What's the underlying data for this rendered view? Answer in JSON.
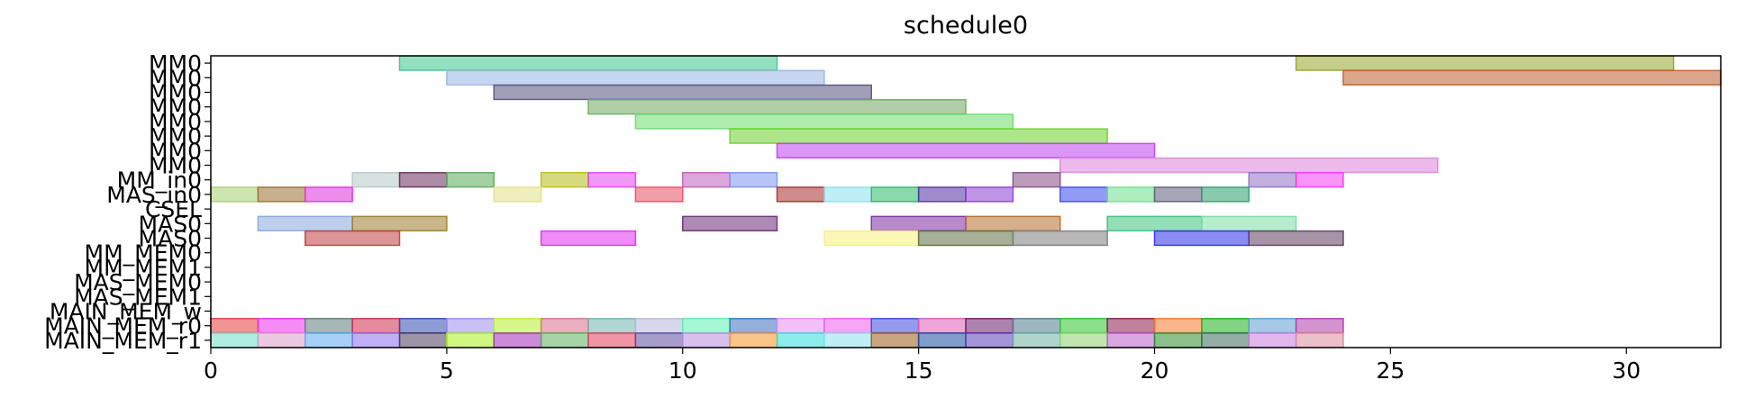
{
  "chart_data": {
    "type": "gantt",
    "title": "schedule0",
    "xlim": [
      0,
      32
    ],
    "x_ticks": [
      0,
      5,
      10,
      15,
      20,
      25,
      30
    ],
    "rows": [
      "MM0",
      "MM0",
      "MM0",
      "MM0",
      "MM0",
      "MM0",
      "MM0",
      "MM0",
      "MM_in0",
      "MAS_in0",
      "CSEL",
      "MAS0",
      "MAS0",
      "MM_MEM0",
      "MM_MEM1",
      "MAS_MEM0",
      "MAS_MEM1",
      "MAIN_MEM_w",
      "MAIN_MEM_r0",
      "MAIN_MEM_r1"
    ],
    "bars": [
      {
        "row": 0,
        "start": 4,
        "end": 12,
        "color": "#3cc48c"
      },
      {
        "row": 0,
        "start": 23,
        "end": 31,
        "color": "#94a428"
      },
      {
        "row": 1,
        "start": 5,
        "end": 13,
        "color": "#98b4e4"
      },
      {
        "row": 1,
        "start": 24,
        "end": 32,
        "color": "#c05c2c"
      },
      {
        "row": 2,
        "start": 6,
        "end": 14,
        "color": "#54507c"
      },
      {
        "row": 3,
        "start": 8,
        "end": 16,
        "color": "#70a860"
      },
      {
        "row": 4,
        "start": 9,
        "end": 17,
        "color": "#6cdc6c"
      },
      {
        "row": 5,
        "start": 11,
        "end": 19,
        "color": "#6cd02c"
      },
      {
        "row": 6,
        "start": 12,
        "end": 20,
        "color": "#c040f0"
      },
      {
        "row": 7,
        "start": 18,
        "end": 26,
        "color": "#dc84dc"
      },
      {
        "row": 8,
        "start": 3,
        "end": 4,
        "color": "#b8c8c8"
      },
      {
        "row": 8,
        "start": 4,
        "end": 5,
        "color": "#6c2c5c"
      },
      {
        "row": 8,
        "start": 5,
        "end": 6,
        "color": "#58ac58"
      },
      {
        "row": 8,
        "start": 7,
        "end": 8,
        "color": "#b8bc18"
      },
      {
        "row": 8,
        "start": 8,
        "end": 9,
        "color": "#e444f0"
      },
      {
        "row": 8,
        "start": 10,
        "end": 11,
        "color": "#c05cbc"
      },
      {
        "row": 8,
        "start": 11,
        "end": 12,
        "color": "#7c94f0"
      },
      {
        "row": 8,
        "start": 17,
        "end": 18,
        "color": "#844c84"
      },
      {
        "row": 8,
        "start": 22,
        "end": 23,
        "color": "#9070c8"
      },
      {
        "row": 8,
        "start": 23,
        "end": 24,
        "color": "#f43cf4"
      },
      {
        "row": 9,
        "start": 0,
        "end": 1,
        "color": "#a8d070"
      },
      {
        "row": 9,
        "start": 1,
        "end": 2,
        "color": "#987030"
      },
      {
        "row": 9,
        "start": 2,
        "end": 3,
        "color": "#dc30dc"
      },
      {
        "row": 9,
        "start": 6,
        "end": 7,
        "color": "#e0e088"
      },
      {
        "row": 9,
        "start": 9,
        "end": 10,
        "color": "#e84c64"
      },
      {
        "row": 9,
        "start": 12,
        "end": 13,
        "color": "#a42c2c"
      },
      {
        "row": 9,
        "start": 13,
        "end": 14,
        "color": "#8ce0ec"
      },
      {
        "row": 9,
        "start": 14,
        "end": 15,
        "color": "#2cb868"
      },
      {
        "row": 9,
        "start": 15,
        "end": 16,
        "color": "#5030a0"
      },
      {
        "row": 9,
        "start": 16,
        "end": 17,
        "color": "#8c3cd0"
      },
      {
        "row": 9,
        "start": 18,
        "end": 19,
        "color": "#3c48ec"
      },
      {
        "row": 9,
        "start": 19,
        "end": 20,
        "color": "#6ce08c"
      },
      {
        "row": 9,
        "start": 20,
        "end": 21,
        "color": "#5c5c7c"
      },
      {
        "row": 9,
        "start": 21,
        "end": 22,
        "color": "#2c9c6c"
      },
      {
        "row": 11,
        "start": 1,
        "end": 3,
        "color": "#88a8dc"
      },
      {
        "row": 11,
        "start": 3,
        "end": 5,
        "color": "#9c7c2c"
      },
      {
        "row": 11,
        "start": 10,
        "end": 12,
        "color": "#6c2c78"
      },
      {
        "row": 11,
        "start": 14,
        "end": 16,
        "color": "#7c2ca0"
      },
      {
        "row": 11,
        "start": 16,
        "end": 18,
        "color": "#b46c2c"
      },
      {
        "row": 11,
        "start": 19,
        "end": 21,
        "color": "#3cc47c"
      },
      {
        "row": 11,
        "start": 21,
        "end": 23,
        "color": "#7cdca8"
      },
      {
        "row": 12,
        "start": 2,
        "end": 4,
        "color": "#c03c3c"
      },
      {
        "row": 12,
        "start": 7,
        "end": 9,
        "color": "#e02cf0"
      },
      {
        "row": 12,
        "start": 13,
        "end": 15,
        "color": "#f8f080"
      },
      {
        "row": 12,
        "start": 15,
        "end": 17,
        "color": "#5c7040"
      },
      {
        "row": 12,
        "start": 17,
        "end": 19,
        "color": "#7c7c7c"
      },
      {
        "row": 12,
        "start": 20,
        "end": 22,
        "color": "#2c2cec"
      },
      {
        "row": 12,
        "start": 22,
        "end": 24,
        "color": "#5c3c5c"
      },
      {
        "row": 18,
        "start": 0,
        "end": 1,
        "color": "#e83c3c"
      },
      {
        "row": 18,
        "start": 1,
        "end": 2,
        "color": "#ec2cf0"
      },
      {
        "row": 18,
        "start": 2,
        "end": 3,
        "color": "#5c7c7c"
      },
      {
        "row": 18,
        "start": 3,
        "end": 4,
        "color": "#d02c4c"
      },
      {
        "row": 18,
        "start": 4,
        "end": 5,
        "color": "#2c4cb0"
      },
      {
        "row": 18,
        "start": 5,
        "end": 6,
        "color": "#9c8cf0"
      },
      {
        "row": 18,
        "start": 6,
        "end": 7,
        "color": "#b8f02c"
      },
      {
        "row": 18,
        "start": 7,
        "end": 8,
        "color": "#d8708c"
      },
      {
        "row": 18,
        "start": 8,
        "end": 9,
        "color": "#70b4b0"
      },
      {
        "row": 18,
        "start": 9,
        "end": 10,
        "color": "#b8b8dc"
      },
      {
        "row": 18,
        "start": 10,
        "end": 11,
        "color": "#5cf0b4"
      },
      {
        "row": 18,
        "start": 11,
        "end": 12,
        "color": "#3c70c0"
      },
      {
        "row": 18,
        "start": 12,
        "end": 13,
        "color": "#e88cf0"
      },
      {
        "row": 18,
        "start": 13,
        "end": 14,
        "color": "#ec5cec"
      },
      {
        "row": 18,
        "start": 14,
        "end": 15,
        "color": "#3c48dc"
      },
      {
        "row": 18,
        "start": 15,
        "end": 16,
        "color": "#dc5cb8"
      },
      {
        "row": 18,
        "start": 16,
        "end": 17,
        "color": "#6c1c6c"
      },
      {
        "row": 18,
        "start": 17,
        "end": 18,
        "color": "#4c7c8c"
      },
      {
        "row": 18,
        "start": 18,
        "end": 19,
        "color": "#2cc42c"
      },
      {
        "row": 18,
        "start": 19,
        "end": 20,
        "color": "#8c1c4c"
      },
      {
        "row": 18,
        "start": 20,
        "end": 21,
        "color": "#f8782c"
      },
      {
        "row": 18,
        "start": 21,
        "end": 22,
        "color": "#1cb01c"
      },
      {
        "row": 18,
        "start": 22,
        "end": 23,
        "color": "#5c9cd0"
      },
      {
        "row": 18,
        "start": 23,
        "end": 24,
        "color": "#b03ca8"
      },
      {
        "row": 19,
        "start": 0,
        "end": 1,
        "color": "#70dcc8"
      },
      {
        "row": 19,
        "start": 1,
        "end": 2,
        "color": "#d89cc8"
      },
      {
        "row": 19,
        "start": 2,
        "end": 3,
        "color": "#5ca8f0"
      },
      {
        "row": 19,
        "start": 3,
        "end": 4,
        "color": "#8c6cf0"
      },
      {
        "row": 19,
        "start": 4,
        "end": 5,
        "color": "#4c3c5c"
      },
      {
        "row": 19,
        "start": 5,
        "end": 6,
        "color": "#a8f01c"
      },
      {
        "row": 19,
        "start": 6,
        "end": 7,
        "color": "#a02cb8"
      },
      {
        "row": 19,
        "start": 7,
        "end": 8,
        "color": "#5cb05c"
      },
      {
        "row": 19,
        "start": 8,
        "end": 9,
        "color": "#e43c5c"
      },
      {
        "row": 19,
        "start": 9,
        "end": 10,
        "color": "#5c4ca0"
      },
      {
        "row": 19,
        "start": 10,
        "end": 11,
        "color": "#b88cdc"
      },
      {
        "row": 19,
        "start": 11,
        "end": 12,
        "color": "#f8942c"
      },
      {
        "row": 19,
        "start": 12,
        "end": 13,
        "color": "#2ce0dc"
      },
      {
        "row": 19,
        "start": 13,
        "end": 14,
        "color": "#8ce0f0"
      },
      {
        "row": 19,
        "start": 14,
        "end": 15,
        "color": "#9c5c1c"
      },
      {
        "row": 19,
        "start": 15,
        "end": 16,
        "color": "#1c4ca0"
      },
      {
        "row": 19,
        "start": 16,
        "end": 17,
        "color": "#5c3cb8"
      },
      {
        "row": 19,
        "start": 17,
        "end": 18,
        "color": "#6cb0a0"
      },
      {
        "row": 19,
        "start": 18,
        "end": 19,
        "color": "#8cd070"
      },
      {
        "row": 19,
        "start": 19,
        "end": 20,
        "color": "#b85cc8"
      },
      {
        "row": 19,
        "start": 20,
        "end": 21,
        "color": "#2c8c2c"
      },
      {
        "row": 19,
        "start": 21,
        "end": 22,
        "color": "#3c6c5c"
      },
      {
        "row": 19,
        "start": 22,
        "end": 23,
        "color": "#c87cdc"
      },
      {
        "row": 19,
        "start": 23,
        "end": 24,
        "color": "#d88c9c"
      }
    ]
  }
}
